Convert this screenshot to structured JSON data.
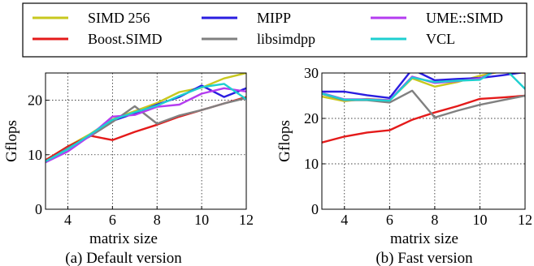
{
  "legend": {
    "placement": "top",
    "items": [
      {
        "label": "SIMD 256",
        "color": "#c8c81e"
      },
      {
        "label": "MIPP",
        "color": "#2a1de0"
      },
      {
        "label": "UME::SIMD",
        "color": "#b43cf0"
      },
      {
        "label": "Boost.SIMD",
        "color": "#e41a1a"
      },
      {
        "label": "libsimdpp",
        "color": "#808080"
      },
      {
        "label": "VCL",
        "color": "#1ecfd0"
      }
    ]
  },
  "chart_data": [
    {
      "type": "line",
      "caption": "(a) Default version",
      "xlabel": "matrix size",
      "ylabel": "Gflops",
      "xlim": [
        3,
        12
      ],
      "ylim": [
        0,
        25
      ],
      "xticks": [
        4,
        6,
        8,
        10,
        12
      ],
      "yticks": [
        0,
        10,
        20
      ],
      "grid": true,
      "x": [
        3,
        4,
        5,
        6,
        7,
        8,
        9,
        10,
        11,
        12
      ],
      "series": [
        {
          "name": "SIMD 256",
          "color": "#c8c81e",
          "values": [
            9.0,
            11.5,
            13.8,
            16.5,
            18.0,
            19.5,
            21.5,
            22.3,
            24.0,
            25.0
          ]
        },
        {
          "name": "Boost.SIMD",
          "color": "#e41a1a",
          "values": [
            9.0,
            11.5,
            13.5,
            12.7,
            14.2,
            15.5,
            17.0,
            18.2,
            19.4,
            20.6
          ]
        },
        {
          "name": "MIPP",
          "color": "#2a1de0",
          "values": [
            8.7,
            11.2,
            13.4,
            16.2,
            17.6,
            19.2,
            20.6,
            22.7,
            20.6,
            22.2
          ]
        },
        {
          "name": "libsimdpp",
          "color": "#808080",
          "values": [
            8.7,
            11.2,
            13.4,
            16.0,
            18.9,
            15.7,
            17.2,
            18.2,
            19.4,
            20.4
          ]
        },
        {
          "name": "UME::SIMD",
          "color": "#b43cf0",
          "values": [
            8.6,
            10.6,
            13.5,
            17.0,
            17.3,
            18.8,
            19.2,
            21.2,
            22.2,
            21.6
          ]
        },
        {
          "name": "VCL",
          "color": "#1ecfd0",
          "values": [
            8.8,
            11.0,
            13.7,
            16.4,
            17.8,
            19.0,
            20.8,
            22.4,
            23.0,
            20.2
          ]
        }
      ]
    },
    {
      "type": "line",
      "caption": "(b) Fast version",
      "xlabel": "matrix size",
      "ylabel": "Gflops",
      "xlim": [
        3,
        12
      ],
      "ylim": [
        0,
        30
      ],
      "xticks": [
        4,
        6,
        8,
        10,
        12
      ],
      "yticks": [
        0,
        10,
        20,
        30
      ],
      "grid": true,
      "x": [
        3,
        4,
        5,
        6,
        7,
        8,
        9,
        10,
        11,
        12
      ],
      "series": [
        {
          "name": "SIMD 256",
          "color": "#c8c81e",
          "values": [
            24.8,
            23.8,
            24.3,
            24.0,
            28.8,
            27.0,
            28.0,
            29.4,
            30.4,
            30.0
          ]
        },
        {
          "name": "Boost.SIMD",
          "color": "#e41a1a",
          "values": [
            14.7,
            16.0,
            16.9,
            17.4,
            19.7,
            21.3,
            22.7,
            24.3,
            24.6,
            25.0
          ]
        },
        {
          "name": "MIPP",
          "color": "#2a1de0",
          "values": [
            25.9,
            25.9,
            25.1,
            24.5,
            30.8,
            28.4,
            28.7,
            28.9,
            29.5,
            30.2
          ]
        },
        {
          "name": "libsimdpp",
          "color": "#808080",
          "values": [
            25.4,
            24.0,
            24.0,
            23.5,
            26.1,
            20.2,
            21.7,
            23.0,
            24.0,
            25.0
          ]
        },
        {
          "name": "UME::SIMD",
          "color": "#b43cf0",
          "values": [
            25.6,
            24.2,
            24.2,
            24.0,
            29.2,
            27.8,
            28.2,
            28.8,
            31.0,
            30.0
          ]
        },
        {
          "name": "VCL",
          "color": "#1ecfd0",
          "values": [
            25.5,
            24.1,
            24.1,
            23.9,
            29.0,
            28.0,
            28.3,
            28.5,
            31.5,
            26.5
          ]
        }
      ]
    }
  ]
}
